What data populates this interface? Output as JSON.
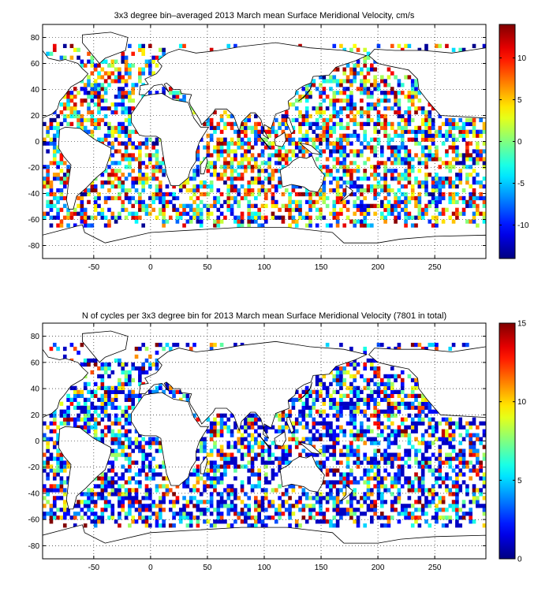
{
  "figure": {
    "panels": [
      {
        "title": "3x3 degree bin–averaged 2013 March mean Surface Meridional Velocity, cm/s",
        "colorbar": {
          "min": -14,
          "max": 14,
          "ticks": [
            10,
            5,
            0,
            -5,
            -10
          ],
          "tick_labels": [
            "10",
            "5",
            "0",
            "-5",
            "-10"
          ]
        }
      },
      {
        "title": "N of cycles per 3x3 degree bin for 2013 March mean Surface Meridional Velocity (7801 in total)",
        "colorbar": {
          "min": 0,
          "max": 15,
          "ticks": [
            15,
            10,
            5,
            0
          ],
          "tick_labels": [
            "15",
            "10",
            "5",
            "0"
          ]
        }
      }
    ],
    "x_ticks": [
      -50,
      0,
      50,
      100,
      150,
      200,
      250
    ],
    "x_tick_labels": [
      "-50",
      "0",
      "50",
      "100",
      "150",
      "200",
      "250"
    ],
    "y_ticks": [
      80,
      60,
      40,
      20,
      0,
      -20,
      -40,
      -60,
      -80
    ],
    "y_tick_labels": [
      "80",
      "60",
      "40",
      "20",
      "0",
      "-20",
      "-40",
      "-60",
      "-80"
    ]
  },
  "chart_data": [
    {
      "type": "heatmap",
      "title": "3x3 degree bin–averaged 2013 March mean Surface Meridional Velocity, cm/s",
      "xlim": [
        -95,
        295
      ],
      "ylim": [
        -90,
        90
      ],
      "bin_size_deg": 3,
      "colormap": "jet",
      "clim": [
        -14,
        14
      ],
      "grid": true,
      "note_values": "dense field of bins over ocean regions; values range roughly -14 to 14 cm/s"
    },
    {
      "type": "heatmap",
      "title": "N of cycles per 3x3 degree bin for 2013 March mean Surface Meridional Velocity (7801 in total)",
      "xlim": [
        -95,
        295
      ],
      "ylim": [
        -90,
        90
      ],
      "bin_size_deg": 3,
      "colormap": "jet",
      "clim": [
        0,
        15
      ],
      "grid": true,
      "total": 7801
    }
  ]
}
